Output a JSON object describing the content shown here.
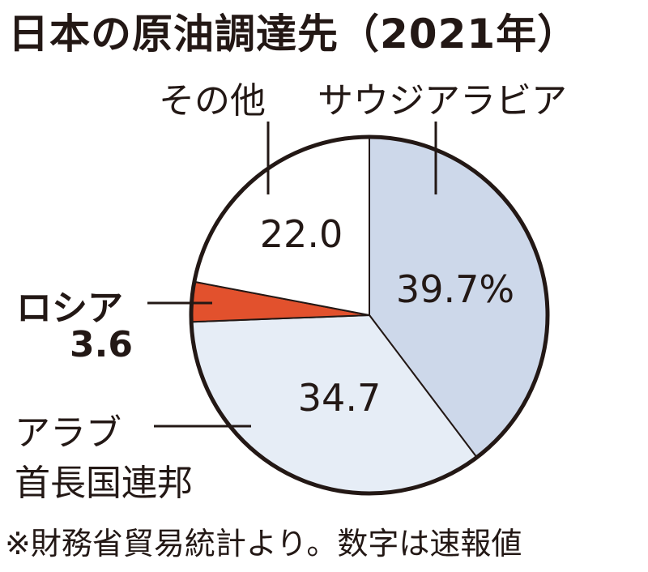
{
  "title": "日本の原油調達先（2021年）",
  "note": "※財務省貿易統計より。数字は速報値",
  "chart_data": {
    "type": "pie",
    "title": "日本の原油調達先（2021年）",
    "unit": "%",
    "slices": [
      {
        "label": "サウジアラビア",
        "value": 39.7,
        "value_text": "39.7%",
        "color": "#cdd8ea"
      },
      {
        "label": "アラブ首長国連邦",
        "label_lines": [
          "アラブ",
          "首長国連邦"
        ],
        "value": 34.7,
        "value_text": "34.7",
        "color": "#e6edf6"
      },
      {
        "label": "ロシア",
        "value": 3.6,
        "value_text": "3.6",
        "color": "#e2512d"
      },
      {
        "label": "その他",
        "value": 22.0,
        "value_text": "22.0",
        "color": "#ffffff"
      }
    ]
  },
  "colors": {
    "outline": "#231815",
    "accent": "#e2512d"
  }
}
